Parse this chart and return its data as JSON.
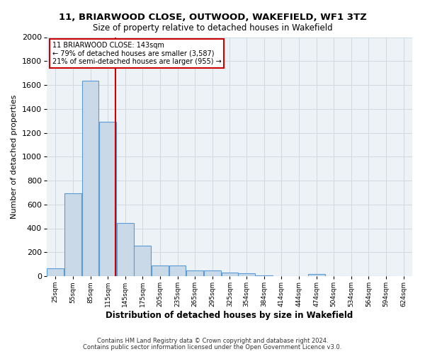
{
  "title": "11, BRIARWOOD CLOSE, OUTWOOD, WAKEFIELD, WF1 3TZ",
  "subtitle": "Size of property relative to detached houses in Wakefield",
  "xlabel": "Distribution of detached houses by size in Wakefield",
  "ylabel": "Number of detached properties",
  "footnote1": "Contains HM Land Registry data © Crown copyright and database right 2024.",
  "footnote2": "Contains public sector information licensed under the Open Government Licence v3.0.",
  "annotation_line1": "11 BRIARWOOD CLOSE: 143sqm",
  "annotation_line2": "← 79% of detached houses are smaller (3,587)",
  "annotation_line3": "21% of semi-detached houses are larger (955) →",
  "property_size": 143,
  "bin_edges": [
    25,
    55,
    85,
    115,
    145,
    175,
    205,
    235,
    265,
    295,
    325,
    354,
    384,
    414,
    444,
    474,
    504,
    534,
    564,
    594,
    624
  ],
  "bar_heights": [
    65,
    695,
    1635,
    1290,
    445,
    255,
    90,
    90,
    50,
    50,
    30,
    25,
    5,
    0,
    0,
    20,
    0,
    0,
    0,
    0
  ],
  "bar_color": "#c9d9e8",
  "bar_edge_color": "#5b9bd5",
  "vline_color": "#cc0000",
  "vline_x": 143,
  "ylim": [
    0,
    2000
  ],
  "yticks": [
    0,
    200,
    400,
    600,
    800,
    1000,
    1200,
    1400,
    1600,
    1800,
    2000
  ],
  "grid_color": "#d0d8e0",
  "background_color": "#edf2f7",
  "annotation_box_color": "#ffffff",
  "annotation_box_edge": "#cc0000",
  "tick_labels": [
    "25sqm",
    "55sqm",
    "85sqm",
    "115sqm",
    "145sqm",
    "175sqm",
    "205sqm",
    "235sqm",
    "265sqm",
    "295sqm",
    "325sqm",
    "354sqm",
    "384sqm",
    "414sqm",
    "444sqm",
    "474sqm",
    "504sqm",
    "534sqm",
    "564sqm",
    "594sqm",
    "624sqm"
  ]
}
